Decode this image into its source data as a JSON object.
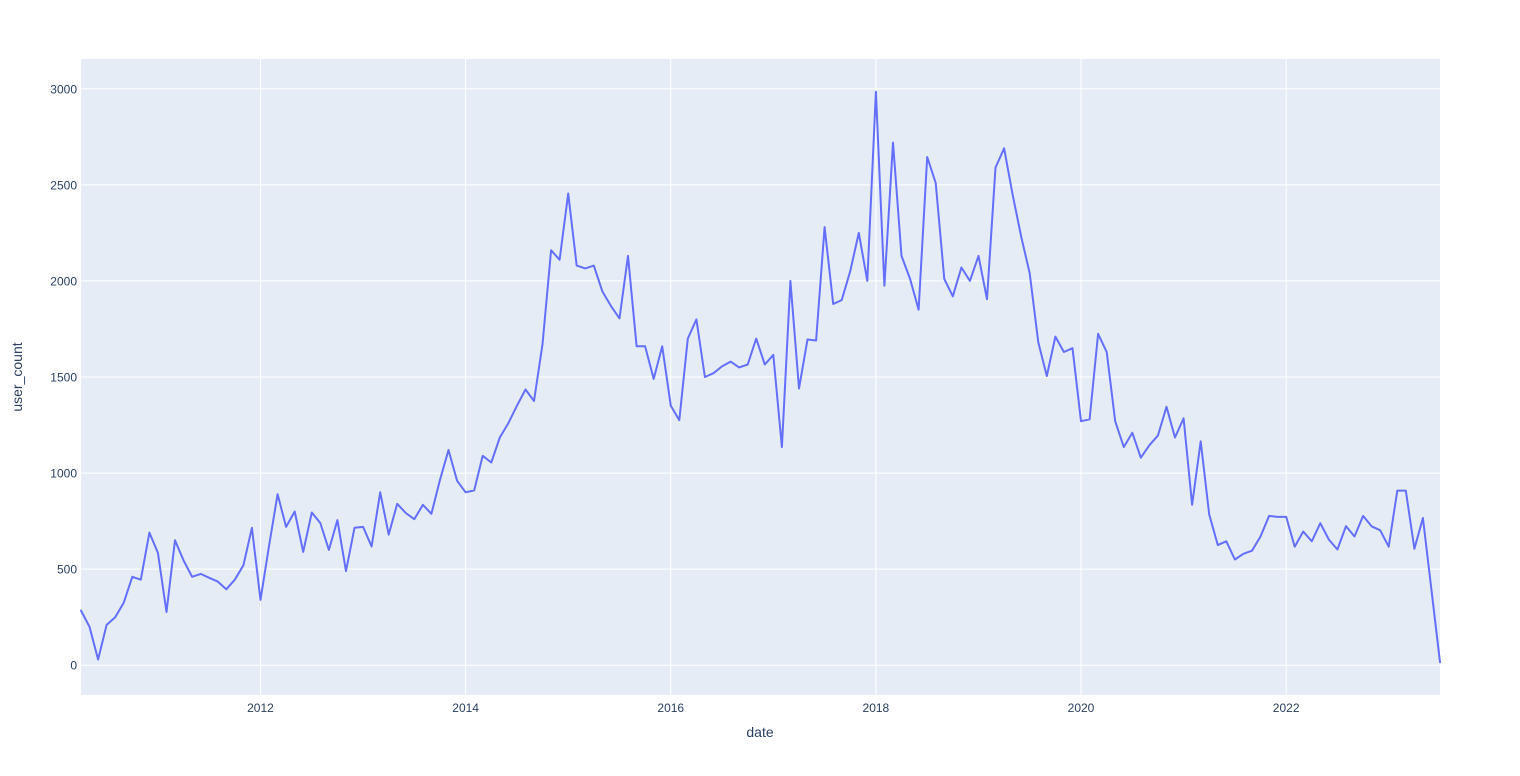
{
  "chart_data": {
    "type": "line",
    "title": "",
    "xlabel": "date",
    "ylabel": "user_count",
    "x_unit": "month",
    "x_start": "2010-04",
    "x_end": "2023-07",
    "x_tick_labels": [
      "2012",
      "2014",
      "2016",
      "2018",
      "2020",
      "2022"
    ],
    "y_ticks": [
      0,
      500,
      1000,
      1500,
      2000,
      2500,
      3000
    ],
    "ylim": [
      -155,
      3155
    ],
    "grid": true,
    "legend": false,
    "colors": {
      "line": "#636efa",
      "plot_bg": "#e5ecf6",
      "grid": "#ffffff",
      "text": "#2a3f5f",
      "paper": "#ffffff"
    },
    "series": [
      {
        "name": "user_count",
        "color": "#636efa",
        "values": [
          285,
          200,
          30,
          210,
          250,
          325,
          460,
          445,
          690,
          585,
          277,
          650,
          545,
          460,
          475,
          455,
          435,
          395,
          445,
          520,
          715,
          340,
          620,
          890,
          720,
          800,
          590,
          795,
          740,
          600,
          755,
          490,
          715,
          720,
          618,
          900,
          680,
          840,
          792,
          760,
          835,
          788,
          965,
          1120,
          960,
          900,
          910,
          1090,
          1055,
          1185,
          1260,
          1350,
          1435,
          1375,
          1670,
          2160,
          2110,
          2455,
          2080,
          2065,
          2080,
          1945,
          1870,
          1805,
          2130,
          1660,
          1660,
          1490,
          1660,
          1350,
          1275,
          1700,
          1800,
          1500,
          1520,
          1555,
          1580,
          1550,
          1565,
          1700,
          1565,
          1615,
          1135,
          2000,
          1440,
          1695,
          1690,
          2280,
          1880,
          1900,
          2050,
          2250,
          2000,
          2985,
          1975,
          2720,
          2130,
          2010,
          1850,
          2645,
          2510,
          2010,
          1920,
          2070,
          2000,
          2130,
          1905,
          2590,
          2690,
          2450,
          2230,
          2040,
          1680,
          1505,
          1710,
          1630,
          1650,
          1270,
          1280,
          1725,
          1630,
          1270,
          1135,
          1210,
          1080,
          1145,
          1195,
          1345,
          1185,
          1285,
          835,
          1165,
          785,
          625,
          645,
          550,
          580,
          596,
          670,
          777,
          772,
          772,
          617,
          696,
          645,
          739,
          654,
          602,
          724,
          670,
          777,
          723,
          702,
          617,
          909,
          909,
          606,
          766,
          390,
          15
        ]
      }
    ]
  }
}
